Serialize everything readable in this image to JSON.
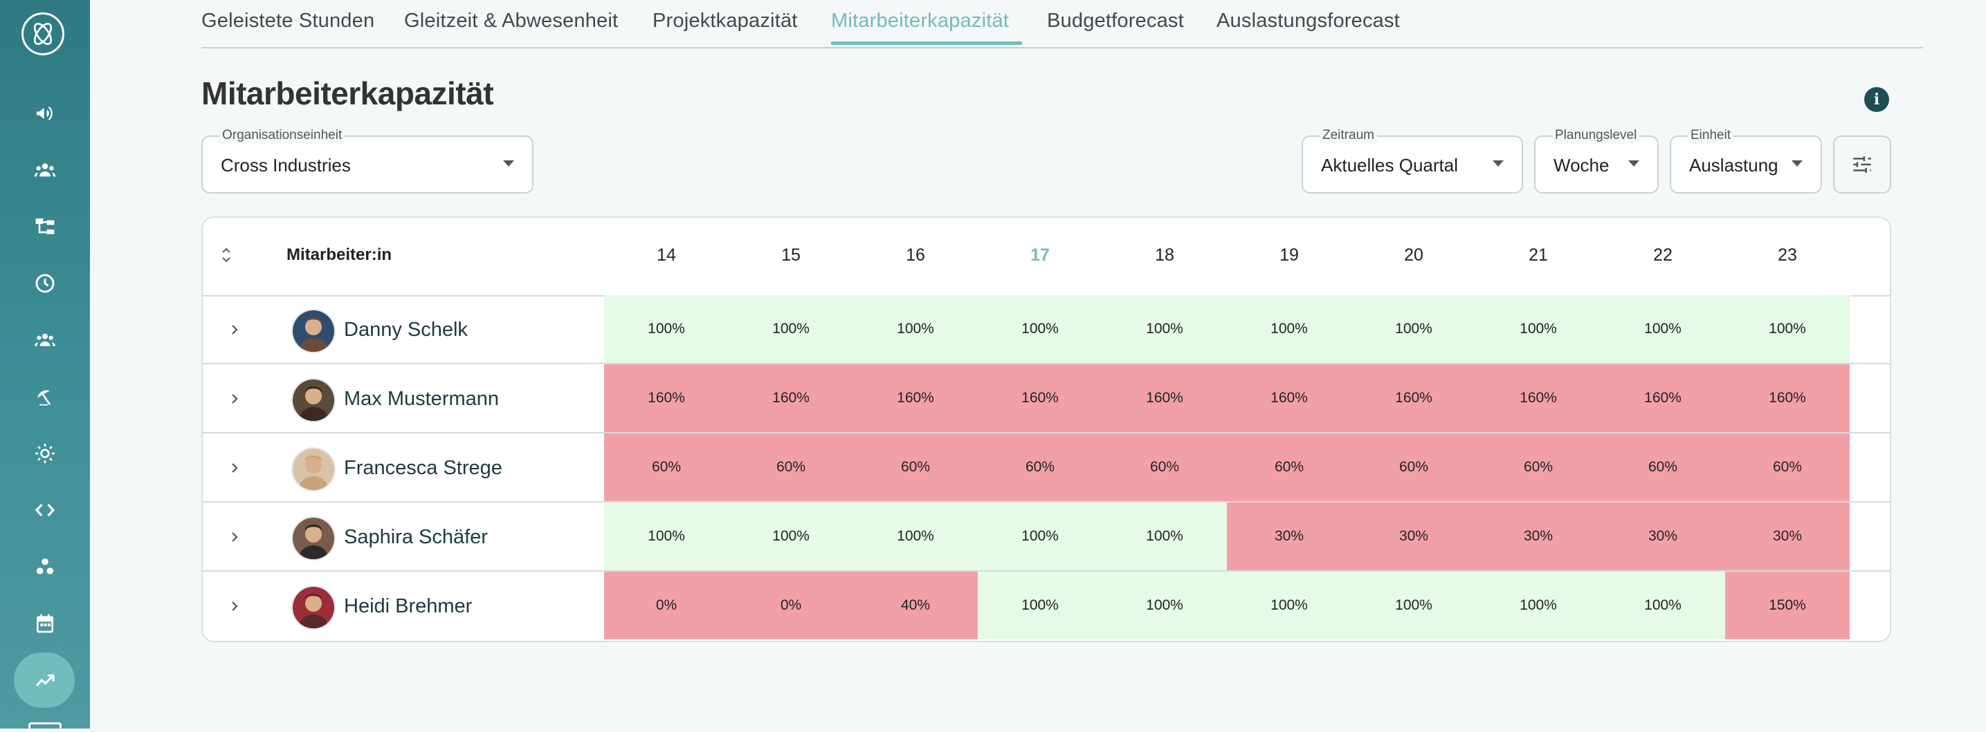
{
  "tabs": [
    {
      "label": "Geleistete Stunden",
      "active": false
    },
    {
      "label": "Gleitzeit & Abwesenheit",
      "active": false
    },
    {
      "label": "Projektkapazität",
      "active": false
    },
    {
      "label": "Mitarbeiterkapazität",
      "active": true
    },
    {
      "label": "Budgetforecast",
      "active": false
    },
    {
      "label": "Auslastungsforecast",
      "active": false
    }
  ],
  "page": {
    "title": "Mitarbeiterkapazität"
  },
  "filters": {
    "org_unit": {
      "label": "Organisationseinheit",
      "value": "Cross Industries"
    },
    "period": {
      "label": "Zeitraum",
      "value": "Aktuelles Quartal"
    },
    "planning_level": {
      "label": "Planungslevel",
      "value": "Woche"
    },
    "unit": {
      "label": "Einheit",
      "value": "Auslastung"
    }
  },
  "table": {
    "employee_header": "Mitarbeiter:in",
    "weeks": [
      "14",
      "15",
      "16",
      "17",
      "18",
      "19",
      "20",
      "21",
      "22",
      "23"
    ],
    "current_week": "17",
    "rows": [
      {
        "name": "Danny Schelk",
        "values": [
          "100%",
          "100%",
          "100%",
          "100%",
          "100%",
          "100%",
          "100%",
          "100%",
          "100%",
          "100%"
        ]
      },
      {
        "name": "Max Mustermann",
        "values": [
          "160%",
          "160%",
          "160%",
          "160%",
          "160%",
          "160%",
          "160%",
          "160%",
          "160%",
          "160%"
        ]
      },
      {
        "name": "Francesca Strege",
        "values": [
          "60%",
          "60%",
          "60%",
          "60%",
          "60%",
          "60%",
          "60%",
          "60%",
          "60%",
          "60%"
        ]
      },
      {
        "name": "Saphira Schäfer",
        "values": [
          "100%",
          "100%",
          "100%",
          "100%",
          "100%",
          "30%",
          "30%",
          "30%",
          "30%",
          "30%"
        ]
      },
      {
        "name": "Heidi Brehmer",
        "values": [
          "0%",
          "0%",
          "40%",
          "100%",
          "100%",
          "100%",
          "100%",
          "100%",
          "100%",
          "150%"
        ]
      }
    ]
  },
  "colors": {
    "accent": "#6fbdbc",
    "ok_cell": "#e6fae8",
    "over_under_cell": "#f2a0a8",
    "sidebar": "#3d8e96"
  },
  "sidebar_icons": [
    "megaphone-icon",
    "team-icon",
    "hierarchy-icon",
    "clock-icon",
    "group-icon",
    "vacation-icon",
    "sun-icon",
    "code-icon",
    "cluster-icon",
    "calendar-icon",
    "analytics-icon"
  ]
}
